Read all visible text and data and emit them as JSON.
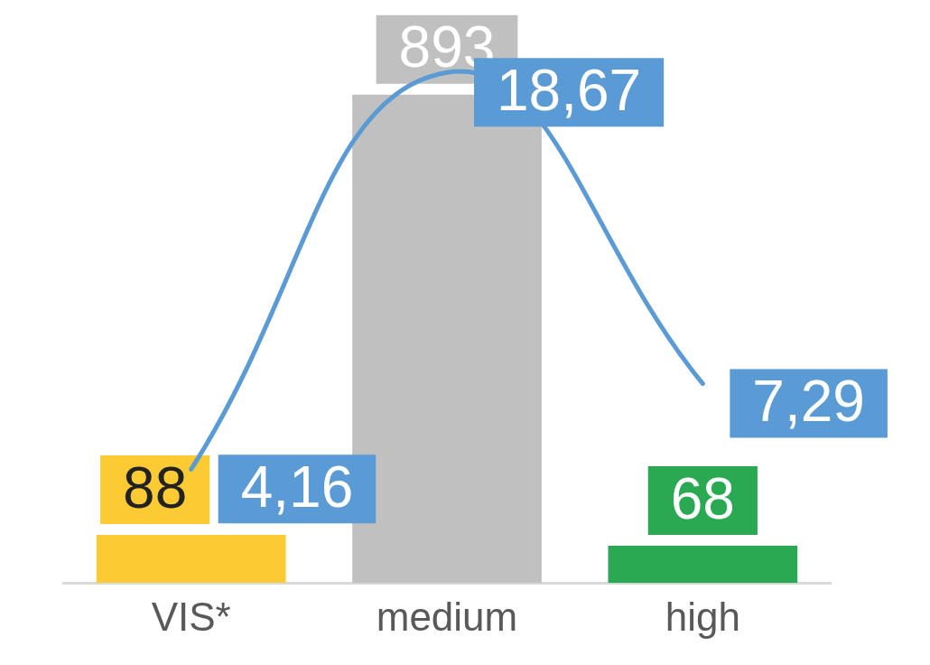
{
  "chart_data": {
    "type": "bar",
    "categories": [
      "VIS*",
      "medium",
      "high"
    ],
    "grid": false,
    "legend": false,
    "tick_labels": "x",
    "series": [
      {
        "colors": [
          "#fccb33",
          "#c0c0c0",
          "#2aa952"
        ],
        "values": [
          88,
          893,
          68
        ],
        "value_labels": [
          "88",
          "893",
          "68"
        ]
      },
      {
        "type": "line",
        "axis": "y2",
        "color": "#5b9bd5",
        "marker": "none",
        "values": [
          4.16,
          18.67,
          7.29
        ],
        "value_labels": [
          "4,16",
          "18,67",
          "7,29"
        ]
      }
    ]
  }
}
